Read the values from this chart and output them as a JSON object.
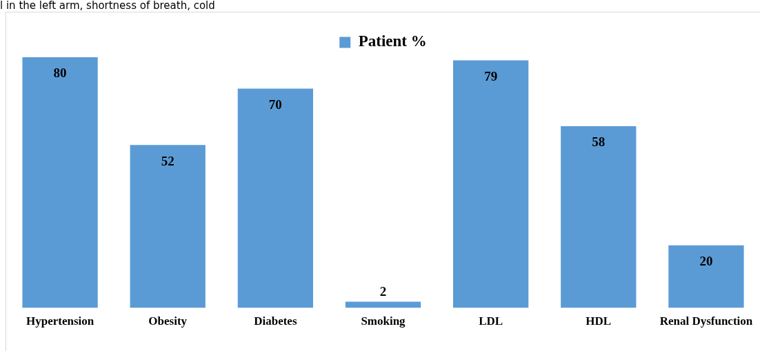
{
  "chart_data": {
    "type": "bar",
    "categories": [
      "Hypertension",
      "Obesity",
      "Diabetes",
      "Smoking",
      "LDL",
      "HDL",
      "Renal Dysfunction"
    ],
    "series": [
      {
        "name": "Patient %",
        "color": "#5b9bd5",
        "values": [
          80,
          52,
          70,
          2,
          79,
          58,
          20
        ]
      }
    ],
    "tick_labels": "x",
    "grid": false,
    "legend": "top",
    "data_labels": true,
    "annotations": [
      "l in the left arm, shortness of breath, cold"
    ]
  }
}
